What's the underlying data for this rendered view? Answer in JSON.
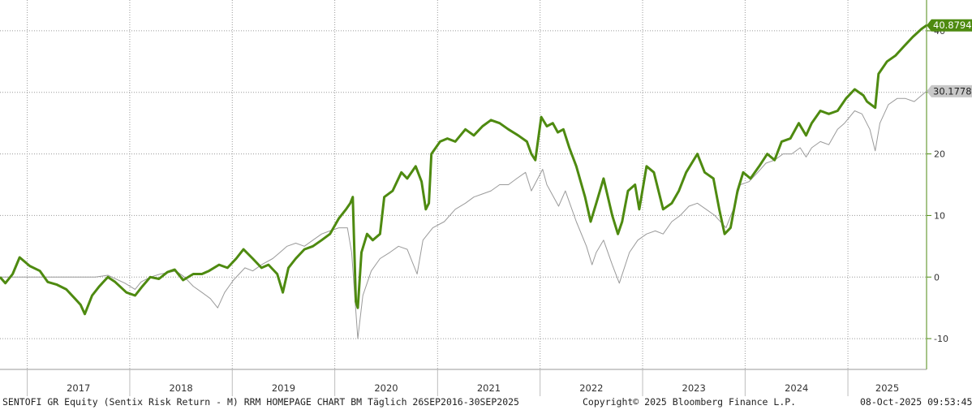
{
  "chart_data": {
    "type": "line",
    "x_range": [
      "2016-09-26",
      "2025-10-08"
    ],
    "ylim": [
      -15,
      45
    ],
    "y_ticks": [
      -10,
      0,
      10,
      20,
      30,
      40
    ],
    "y_tick_labels": [
      "-10",
      "0",
      "10",
      "20",
      "30",
      "40"
    ],
    "x_year_labels": [
      "2017",
      "2018",
      "2019",
      "2020",
      "2021",
      "2022",
      "2023",
      "2024",
      "2025"
    ],
    "grid": true,
    "y_axis_side": "right",
    "series": [
      {
        "color": "#4e8a10",
        "last_value_label": "40.8794",
        "last_value": 40.8794,
        "points": [
          [
            "2016-09-26",
            0.0
          ],
          [
            "2016-10-15",
            -1.0
          ],
          [
            "2016-11-10",
            0.5
          ],
          [
            "2016-12-05",
            3.2
          ],
          [
            "2017-01-10",
            1.8
          ],
          [
            "2017-02-15",
            1.0
          ],
          [
            "2017-03-15",
            -0.8
          ],
          [
            "2017-04-15",
            -1.2
          ],
          [
            "2017-05-20",
            -2.0
          ],
          [
            "2017-06-20",
            -3.5
          ],
          [
            "2017-07-10",
            -4.5
          ],
          [
            "2017-07-25",
            -6.0
          ],
          [
            "2017-08-20",
            -3.0
          ],
          [
            "2017-09-15",
            -1.5
          ],
          [
            "2017-10-15",
            0.0
          ],
          [
            "2017-11-10",
            -0.8
          ],
          [
            "2017-12-20",
            -2.5
          ],
          [
            "2018-01-20",
            -3.0
          ],
          [
            "2018-02-15",
            -1.5
          ],
          [
            "2018-03-15",
            0.0
          ],
          [
            "2018-04-15",
            -0.3
          ],
          [
            "2018-05-15",
            0.8
          ],
          [
            "2018-06-10",
            1.2
          ],
          [
            "2018-07-10",
            -0.5
          ],
          [
            "2018-08-15",
            0.5
          ],
          [
            "2018-09-15",
            0.5
          ],
          [
            "2018-10-10",
            1.0
          ],
          [
            "2018-11-15",
            2.0
          ],
          [
            "2018-12-15",
            1.5
          ],
          [
            "2019-01-15",
            3.0
          ],
          [
            "2019-02-10",
            4.5
          ],
          [
            "2019-03-15",
            3.0
          ],
          [
            "2019-04-15",
            1.5
          ],
          [
            "2019-05-10",
            2.0
          ],
          [
            "2019-06-10",
            0.5
          ],
          [
            "2019-06-30",
            -2.5
          ],
          [
            "2019-07-20",
            1.5
          ],
          [
            "2019-08-15",
            3.0
          ],
          [
            "2019-09-15",
            4.5
          ],
          [
            "2019-10-15",
            5.0
          ],
          [
            "2019-11-15",
            6.0
          ],
          [
            "2019-12-15",
            7.0
          ],
          [
            "2020-01-15",
            9.5
          ],
          [
            "2020-02-10",
            11.0
          ],
          [
            "2020-02-25",
            12.0
          ],
          [
            "2020-03-05",
            13.0
          ],
          [
            "2020-03-16",
            -4.0
          ],
          [
            "2020-03-23",
            -5.0
          ],
          [
            "2020-04-05",
            4.0
          ],
          [
            "2020-04-25",
            7.0
          ],
          [
            "2020-05-15",
            6.0
          ],
          [
            "2020-06-10",
            7.0
          ],
          [
            "2020-06-25",
            13.0
          ],
          [
            "2020-07-25",
            14.0
          ],
          [
            "2020-08-25",
            17.0
          ],
          [
            "2020-09-15",
            16.0
          ],
          [
            "2020-10-15",
            18.0
          ],
          [
            "2020-11-05",
            15.5
          ],
          [
            "2020-11-20",
            11.0
          ],
          [
            "2020-12-01",
            12.0
          ],
          [
            "2020-12-10",
            20.0
          ],
          [
            "2021-01-10",
            22.0
          ],
          [
            "2021-02-05",
            22.5
          ],
          [
            "2021-03-05",
            22.0
          ],
          [
            "2021-04-10",
            24.0
          ],
          [
            "2021-05-10",
            23.0
          ],
          [
            "2021-06-10",
            24.5
          ],
          [
            "2021-07-10",
            25.5
          ],
          [
            "2021-08-10",
            25.0
          ],
          [
            "2021-09-10",
            24.0
          ],
          [
            "2021-10-15",
            23.0
          ],
          [
            "2021-11-15",
            22.0
          ],
          [
            "2021-12-01",
            20.0
          ],
          [
            "2021-12-15",
            19.0
          ],
          [
            "2022-01-05",
            26.0
          ],
          [
            "2022-01-25",
            24.5
          ],
          [
            "2022-02-15",
            25.0
          ],
          [
            "2022-03-05",
            23.5
          ],
          [
            "2022-03-25",
            24.0
          ],
          [
            "2022-04-15",
            21.0
          ],
          [
            "2022-05-10",
            18.0
          ],
          [
            "2022-06-10",
            13.0
          ],
          [
            "2022-06-30",
            9.0
          ],
          [
            "2022-07-20",
            12.0
          ],
          [
            "2022-08-15",
            16.0
          ],
          [
            "2022-09-15",
            10.0
          ],
          [
            "2022-10-05",
            7.0
          ],
          [
            "2022-10-20",
            9.0
          ],
          [
            "2022-11-10",
            14.0
          ],
          [
            "2022-12-05",
            15.0
          ],
          [
            "2022-12-20",
            11.0
          ],
          [
            "2023-01-15",
            18.0
          ],
          [
            "2023-02-10",
            17.0
          ],
          [
            "2023-03-15",
            11.0
          ],
          [
            "2023-04-15",
            12.0
          ],
          [
            "2023-05-10",
            14.0
          ],
          [
            "2023-06-05",
            17.0
          ],
          [
            "2023-07-15",
            20.0
          ],
          [
            "2023-08-10",
            17.0
          ],
          [
            "2023-09-10",
            16.0
          ],
          [
            "2023-10-01",
            11.0
          ],
          [
            "2023-10-20",
            7.0
          ],
          [
            "2023-11-10",
            8.0
          ],
          [
            "2023-12-05",
            14.0
          ],
          [
            "2023-12-25",
            17.0
          ],
          [
            "2024-01-20",
            16.0
          ],
          [
            "2024-02-20",
            18.0
          ],
          [
            "2024-03-20",
            20.0
          ],
          [
            "2024-04-15",
            19.0
          ],
          [
            "2024-05-10",
            22.0
          ],
          [
            "2024-06-10",
            22.5
          ],
          [
            "2024-07-10",
            25.0
          ],
          [
            "2024-08-05",
            23.0
          ],
          [
            "2024-08-25",
            25.0
          ],
          [
            "2024-09-25",
            27.0
          ],
          [
            "2024-10-25",
            26.5
          ],
          [
            "2024-11-25",
            27.0
          ],
          [
            "2024-12-25",
            29.0
          ],
          [
            "2025-01-25",
            30.5
          ],
          [
            "2025-02-25",
            29.5
          ],
          [
            "2025-03-10",
            28.5
          ],
          [
            "2025-04-08",
            27.5
          ],
          [
            "2025-04-20",
            33.0
          ],
          [
            "2025-05-20",
            35.0
          ],
          [
            "2025-06-20",
            36.0
          ],
          [
            "2025-07-20",
            37.5
          ],
          [
            "2025-08-20",
            39.0
          ],
          [
            "2025-09-20",
            40.3
          ],
          [
            "2025-10-08",
            40.8794
          ]
        ]
      },
      {
        "color": "#9a9a9a",
        "last_value_label": "30.1778",
        "last_value": 30.1778,
        "points": [
          [
            "2016-09-26",
            0.0
          ],
          [
            "2016-12-01",
            0.0
          ],
          [
            "2017-06-01",
            0.0
          ],
          [
            "2017-09-01",
            0.0
          ],
          [
            "2017-10-15",
            0.3
          ],
          [
            "2017-12-15",
            -1.0
          ],
          [
            "2018-01-20",
            -2.0
          ],
          [
            "2018-02-10",
            -0.8
          ],
          [
            "2018-03-15",
            0.0
          ],
          [
            "2018-04-20",
            0.5
          ],
          [
            "2018-06-15",
            1.0
          ],
          [
            "2018-07-15",
            0.0
          ],
          [
            "2018-08-15",
            -1.5
          ],
          [
            "2018-09-15",
            -2.5
          ],
          [
            "2018-10-15",
            -3.5
          ],
          [
            "2018-11-10",
            -5.0
          ],
          [
            "2018-12-05",
            -2.5
          ],
          [
            "2019-01-05",
            -0.5
          ],
          [
            "2019-02-15",
            1.5
          ],
          [
            "2019-03-15",
            1.0
          ],
          [
            "2019-04-15",
            2.0
          ],
          [
            "2019-05-25",
            3.0
          ],
          [
            "2019-06-20",
            4.0
          ],
          [
            "2019-07-15",
            5.0
          ],
          [
            "2019-08-15",
            5.5
          ],
          [
            "2019-09-15",
            5.0
          ],
          [
            "2019-10-15",
            6.0
          ],
          [
            "2019-11-15",
            7.0
          ],
          [
            "2019-12-15",
            7.5
          ],
          [
            "2020-01-15",
            8.0
          ],
          [
            "2020-02-15",
            8.0
          ],
          [
            "2020-03-01",
            4.0
          ],
          [
            "2020-03-23",
            -10.0
          ],
          [
            "2020-04-10",
            -3.0
          ],
          [
            "2020-05-10",
            1.0
          ],
          [
            "2020-06-10",
            3.0
          ],
          [
            "2020-07-15",
            4.0
          ],
          [
            "2020-08-15",
            5.0
          ],
          [
            "2020-09-15",
            4.5
          ],
          [
            "2020-10-20",
            0.5
          ],
          [
            "2020-11-10",
            6.0
          ],
          [
            "2020-12-15",
            8.0
          ],
          [
            "2021-01-25",
            9.0
          ],
          [
            "2021-03-05",
            11.0
          ],
          [
            "2021-04-10",
            12.0
          ],
          [
            "2021-05-10",
            13.0
          ],
          [
            "2021-06-10",
            13.5
          ],
          [
            "2021-07-10",
            14.0
          ],
          [
            "2021-08-10",
            15.0
          ],
          [
            "2021-09-10",
            15.0
          ],
          [
            "2021-10-10",
            16.0
          ],
          [
            "2021-11-10",
            17.0
          ],
          [
            "2021-12-01",
            14.0
          ],
          [
            "2022-01-10",
            17.5
          ],
          [
            "2022-01-25",
            15.0
          ],
          [
            "2022-03-08",
            11.5
          ],
          [
            "2022-04-01",
            14.0
          ],
          [
            "2022-05-10",
            9.0
          ],
          [
            "2022-06-15",
            5.0
          ],
          [
            "2022-07-05",
            2.0
          ],
          [
            "2022-07-20",
            4.0
          ],
          [
            "2022-08-15",
            6.0
          ],
          [
            "2022-09-15",
            2.0
          ],
          [
            "2022-10-10",
            -1.0
          ],
          [
            "2022-11-15",
            4.0
          ],
          [
            "2022-12-15",
            6.0
          ],
          [
            "2023-01-15",
            7.0
          ],
          [
            "2023-02-15",
            7.5
          ],
          [
            "2023-03-15",
            7.0
          ],
          [
            "2023-04-15",
            9.0
          ],
          [
            "2023-05-15",
            10.0
          ],
          [
            "2023-06-15",
            11.5
          ],
          [
            "2023-07-15",
            12.0
          ],
          [
            "2023-08-15",
            11.0
          ],
          [
            "2023-09-15",
            10.0
          ],
          [
            "2023-10-25",
            8.0
          ],
          [
            "2023-11-20",
            11.0
          ],
          [
            "2023-12-15",
            15.0
          ],
          [
            "2024-01-15",
            15.5
          ],
          [
            "2024-02-15",
            17.0
          ],
          [
            "2024-03-15",
            18.5
          ],
          [
            "2024-04-15",
            19.0
          ],
          [
            "2024-05-15",
            20.0
          ],
          [
            "2024-06-15",
            20.0
          ],
          [
            "2024-07-15",
            21.0
          ],
          [
            "2024-08-05",
            19.5
          ],
          [
            "2024-08-25",
            21.0
          ],
          [
            "2024-09-25",
            22.0
          ],
          [
            "2024-10-25",
            21.5
          ],
          [
            "2024-11-25",
            24.0
          ],
          [
            "2024-12-20",
            25.0
          ],
          [
            "2025-01-25",
            27.0
          ],
          [
            "2025-02-20",
            26.5
          ],
          [
            "2025-03-20",
            24.0
          ],
          [
            "2025-04-08",
            20.5
          ],
          [
            "2025-04-25",
            25.0
          ],
          [
            "2025-05-25",
            28.0
          ],
          [
            "2025-06-25",
            29.0
          ],
          [
            "2025-07-25",
            29.0
          ],
          [
            "2025-08-25",
            28.5
          ],
          [
            "2025-09-20",
            29.5
          ],
          [
            "2025-10-08",
            30.1778
          ]
        ]
      }
    ]
  },
  "footer": {
    "left": "SENTOFI GR Equity (Sentix Risk Return - M) RRM HOMEPAGE CHART BM Täglich 26SEP2016-30SEP2025",
    "center": "Copyright© 2025 Bloomberg Finance L.P.",
    "right": "08-Oct-2025 09:53:45"
  }
}
